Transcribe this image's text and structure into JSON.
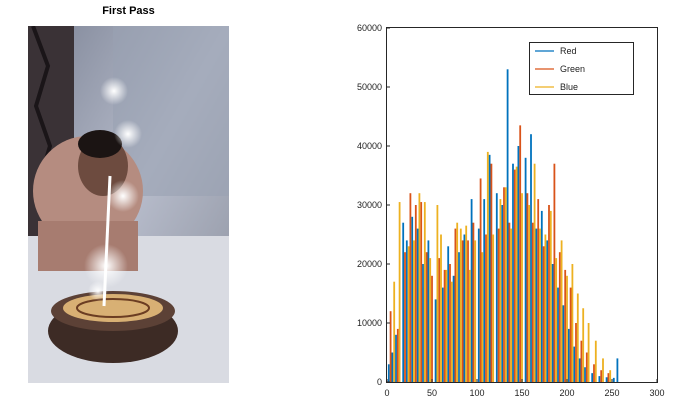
{
  "photo": {
    "title": "First Pass",
    "description_icon": "photo-birthday-cake-icon"
  },
  "chart_data": {
    "type": "histogram",
    "xlim": [
      0,
      300
    ],
    "ylim": [
      0,
      60000
    ],
    "x_ticks": [
      0,
      50,
      100,
      150,
      200,
      250,
      300
    ],
    "y_ticks": [
      0,
      10000,
      20000,
      30000,
      40000,
      50000,
      60000
    ],
    "legend_position": "top-right",
    "grid": false,
    "colors": {
      "Red": "#0072bd",
      "Green": "#d95319",
      "Blue": "#edb120"
    },
    "series": [
      {
        "name": "Red",
        "color": "#0072bd",
        "bins": [
          [
            2,
            3000
          ],
          [
            6,
            5000
          ],
          [
            10,
            8000
          ],
          [
            18,
            27000
          ],
          [
            22,
            24000
          ],
          [
            28,
            28000
          ],
          [
            34,
            26000
          ],
          [
            40,
            20000
          ],
          [
            46,
            24000
          ],
          [
            54,
            14000
          ],
          [
            62,
            16000
          ],
          [
            68,
            23000
          ],
          [
            74,
            18000
          ],
          [
            80,
            22000
          ],
          [
            86,
            25000
          ],
          [
            94,
            31000
          ],
          [
            102,
            26000
          ],
          [
            108,
            31000
          ],
          [
            114,
            38500
          ],
          [
            122,
            32000
          ],
          [
            128,
            30000
          ],
          [
            134,
            53000
          ],
          [
            140,
            37000
          ],
          [
            146,
            40000
          ],
          [
            154,
            38000
          ],
          [
            160,
            42000
          ],
          [
            166,
            26000
          ],
          [
            172,
            29000
          ],
          [
            178,
            24000
          ],
          [
            184,
            20000
          ],
          [
            190,
            16000
          ],
          [
            196,
            13000
          ],
          [
            202,
            9000
          ],
          [
            208,
            6000
          ],
          [
            214,
            4000
          ],
          [
            220,
            2500
          ],
          [
            228,
            1500
          ],
          [
            236,
            1000
          ],
          [
            244,
            800
          ],
          [
            252,
            700
          ],
          [
            256,
            4000
          ]
        ]
      },
      {
        "name": "Green",
        "color": "#d95319",
        "bins": [
          [
            4,
            12000
          ],
          [
            12,
            9000
          ],
          [
            20,
            22000
          ],
          [
            26,
            32000
          ],
          [
            32,
            30000
          ],
          [
            38,
            30500
          ],
          [
            44,
            22000
          ],
          [
            50,
            18000
          ],
          [
            58,
            21000
          ],
          [
            64,
            19000
          ],
          [
            70,
            20000
          ],
          [
            76,
            26000
          ],
          [
            84,
            24000
          ],
          [
            90,
            24000
          ],
          [
            96,
            27000
          ],
          [
            104,
            34500
          ],
          [
            110,
            25000
          ],
          [
            116,
            37000
          ],
          [
            124,
            26000
          ],
          [
            130,
            33000
          ],
          [
            136,
            27000
          ],
          [
            142,
            36000
          ],
          [
            148,
            43500
          ],
          [
            156,
            32000
          ],
          [
            162,
            27000
          ],
          [
            168,
            31000
          ],
          [
            174,
            23000
          ],
          [
            180,
            30000
          ],
          [
            186,
            37000
          ],
          [
            192,
            22000
          ],
          [
            198,
            19000
          ],
          [
            204,
            16000
          ],
          [
            210,
            10000
          ],
          [
            216,
            7000
          ],
          [
            222,
            5000
          ],
          [
            230,
            3000
          ],
          [
            238,
            2000
          ],
          [
            246,
            1500
          ]
        ]
      },
      {
        "name": "Blue",
        "color": "#edb120",
        "bins": [
          [
            8,
            17000
          ],
          [
            14,
            30500
          ],
          [
            24,
            23000
          ],
          [
            30,
            24000
          ],
          [
            36,
            32000
          ],
          [
            42,
            30500
          ],
          [
            48,
            21000
          ],
          [
            56,
            30000
          ],
          [
            60,
            25000
          ],
          [
            66,
            19000
          ],
          [
            72,
            17000
          ],
          [
            78,
            27000
          ],
          [
            82,
            26000
          ],
          [
            88,
            26500
          ],
          [
            92,
            19000
          ],
          [
            98,
            24000
          ],
          [
            106,
            22000
          ],
          [
            112,
            39000
          ],
          [
            118,
            25000
          ],
          [
            126,
            31000
          ],
          [
            132,
            33000
          ],
          [
            138,
            26000
          ],
          [
            144,
            36500
          ],
          [
            150,
            32000
          ],
          [
            158,
            30000
          ],
          [
            164,
            37000
          ],
          [
            170,
            26000
          ],
          [
            176,
            25000
          ],
          [
            182,
            29000
          ],
          [
            188,
            21000
          ],
          [
            194,
            24000
          ],
          [
            200,
            18000
          ],
          [
            206,
            20000
          ],
          [
            212,
            15000
          ],
          [
            218,
            12500
          ],
          [
            224,
            10000
          ],
          [
            232,
            7000
          ],
          [
            240,
            4000
          ],
          [
            248,
            2000
          ]
        ]
      }
    ]
  }
}
